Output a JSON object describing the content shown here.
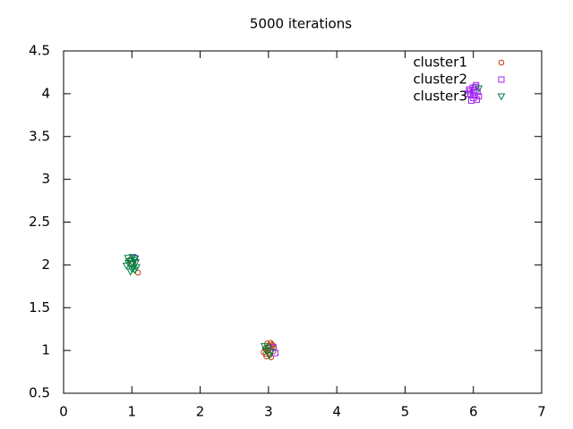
{
  "chart_data": {
    "type": "scatter",
    "title": "5000 iterations",
    "xlim": [
      0,
      7
    ],
    "xticks": [
      0,
      1,
      2,
      3,
      4,
      5,
      6,
      7
    ],
    "ylim": [
      0.5,
      4.5
    ],
    "yticks": [
      0.5,
      1,
      1.5,
      2,
      2.5,
      3,
      3.5,
      4,
      4.5
    ],
    "legend": "top-right",
    "series": [
      {
        "name": "cluster1",
        "color": "#c04010",
        "marker": "circle",
        "x": [
          2.95,
          3.02,
          3.06,
          2.98,
          3.04,
          2.93,
          3.08,
          3.0,
          2.97,
          3.05,
          3.01,
          2.96,
          3.07,
          3.03,
          2.99,
          1.02,
          1.09,
          0.97
        ],
        "values": [
          1.02,
          0.95,
          1.06,
          1.08,
          0.92,
          0.98,
          1.03,
          1.0,
          0.93,
          1.07,
          1.05,
          0.96,
          0.99,
          1.09,
          1.01,
          2.03,
          1.91,
          2.06
        ]
      },
      {
        "name": "cluster2",
        "color": "#a020f0",
        "marker": "square",
        "x": [
          5.94,
          6.0,
          6.06,
          5.97,
          6.03,
          5.92,
          6.08,
          6.01,
          5.96,
          6.05,
          5.99,
          6.02,
          6.04,
          5.95,
          3.1,
          3.07,
          1.04
        ],
        "values": [
          4.05,
          3.95,
          4.02,
          3.92,
          4.08,
          4.0,
          3.97,
          4.04,
          3.99,
          3.93,
          4.07,
          3.98,
          4.1,
          4.03,
          0.97,
          1.04,
          2.08
        ]
      },
      {
        "name": "cluster3",
        "color": "#008040",
        "marker": "triangle-down",
        "x": [
          0.95,
          1.0,
          1.05,
          0.98,
          1.03,
          0.92,
          1.07,
          1.01,
          0.96,
          1.04,
          0.99,
          1.02,
          0.94,
          1.06,
          2.96,
          3.01,
          2.94,
          3.04,
          2.99,
          6.08
        ],
        "values": [
          2.02,
          1.95,
          2.07,
          1.92,
          2.05,
          1.99,
          1.97,
          2.09,
          2.04,
          1.94,
          2.01,
          1.96,
          2.08,
          2.03,
          1.0,
          0.94,
          1.05,
          0.98,
          1.03,
          4.06
        ]
      }
    ]
  }
}
